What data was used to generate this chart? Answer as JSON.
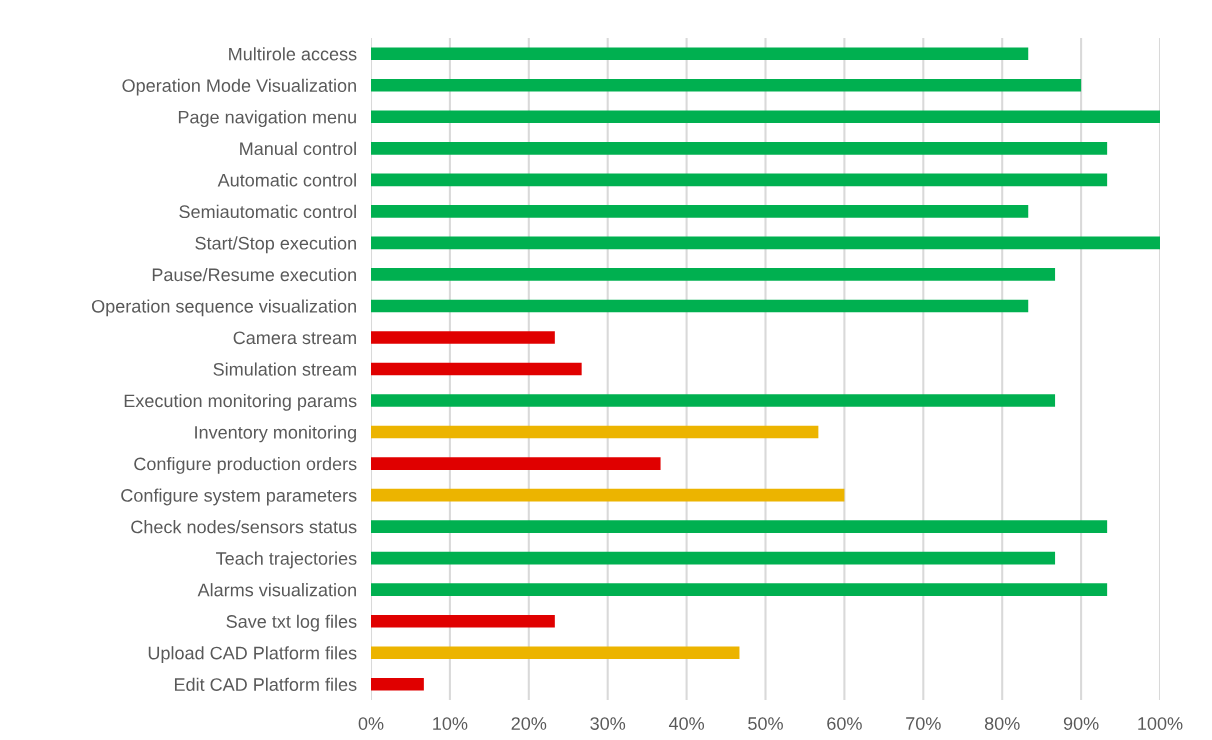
{
  "chart_data": {
    "type": "bar",
    "orientation": "horizontal",
    "categories": [
      "Multirole access",
      "Operation Mode Visualization",
      "Page navigation menu",
      "Manual control",
      "Automatic control",
      "Semiautomatic control",
      "Start/Stop execution",
      "Pause/Resume execution",
      "Operation sequence visualization",
      "Camera stream",
      "Simulation stream",
      "Execution monitoring params",
      "Inventory monitoring",
      "Configure production orders",
      "Configure system parameters",
      "Check nodes/sensors status",
      "Teach trajectories",
      "Alarms visualization",
      "Save txt log files",
      "Upload CAD Platform files",
      "Edit CAD Platform files"
    ],
    "values": [
      83.3,
      90,
      100,
      93.3,
      93.3,
      83.3,
      100,
      86.7,
      83.3,
      23.3,
      26.7,
      86.7,
      56.7,
      36.7,
      60,
      93.3,
      86.7,
      93.3,
      23.3,
      46.7,
      6.7
    ],
    "colors": [
      "#00b050",
      "#00b050",
      "#00b050",
      "#00b050",
      "#00b050",
      "#00b050",
      "#00b050",
      "#00b050",
      "#00b050",
      "#e00000",
      "#e00000",
      "#00b050",
      "#ecb400",
      "#e00000",
      "#ecb400",
      "#00b050",
      "#00b050",
      "#00b050",
      "#e00000",
      "#ecb400",
      "#e00000"
    ],
    "xlim": [
      0,
      100
    ],
    "xticks": [
      {
        "value": 0,
        "label": "0%"
      },
      {
        "value": 10,
        "label": "10%"
      },
      {
        "value": 20,
        "label": "20%"
      },
      {
        "value": 30,
        "label": "30%"
      },
      {
        "value": 40,
        "label": "40%"
      },
      {
        "value": 50,
        "label": "50%"
      },
      {
        "value": 60,
        "label": "60%"
      },
      {
        "value": 70,
        "label": "70%"
      },
      {
        "value": 80,
        "label": "80%"
      },
      {
        "value": 90,
        "label": "90%"
      },
      {
        "value": 100,
        "label": "100%"
      }
    ],
    "grid": "x",
    "legend": false
  }
}
